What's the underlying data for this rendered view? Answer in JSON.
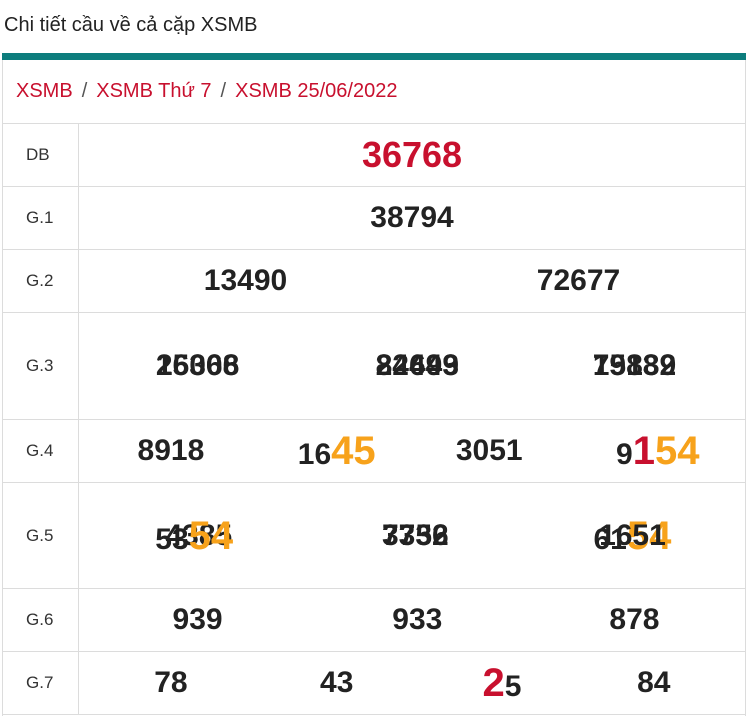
{
  "page_title": "Chi tiết cầu về cả cặp XSMB",
  "breadcrumb": {
    "items": [
      "XSMB",
      "XSMB Thứ 7",
      "XSMB 25/06/2022"
    ],
    "separator": "/"
  },
  "colors": {
    "accent_bar": "#0d7d7d",
    "link": "#c8102e",
    "highlight": "#f7a21b",
    "special": "#c8102e"
  },
  "results": {
    "db": {
      "label": "DB",
      "values": [
        "36768"
      ]
    },
    "g1": {
      "label": "G.1",
      "values": [
        "38794"
      ]
    },
    "g2": {
      "label": "G.2",
      "values": [
        "13490",
        "72677"
      ]
    },
    "g3": {
      "label": "G.3",
      "values": [
        "15066",
        "24443",
        "15882",
        "26308",
        "82699",
        "79139"
      ]
    },
    "g4": {
      "label": "G.4",
      "values": [
        {
          "pre": "8918",
          "hl": "",
          "post": ""
        },
        {
          "pre": "16",
          "hl": "45",
          "post": ""
        },
        {
          "pre": "3051",
          "hl": "",
          "post": ""
        },
        {
          "pre": "9",
          "red": "1",
          "hl": "54",
          "post": ""
        }
      ]
    },
    "g5": {
      "label": "G.5",
      "values": [
        {
          "pre": "4385",
          "hl": ""
        },
        {
          "pre": "7752",
          "hl": ""
        },
        {
          "pre": "61",
          "hl": "54"
        },
        {
          "pre": "53",
          "hl": "54"
        },
        {
          "pre": "3336",
          "hl": ""
        },
        {
          "pre": "1651",
          "hl": ""
        }
      ]
    },
    "g6": {
      "label": "G.6",
      "values": [
        "939",
        "933",
        "878"
      ]
    },
    "g7": {
      "label": "G.7",
      "values": [
        {
          "pre": "78"
        },
        {
          "pre": "43"
        },
        {
          "red": "2",
          "post": "5"
        },
        {
          "pre": "84"
        }
      ]
    }
  }
}
